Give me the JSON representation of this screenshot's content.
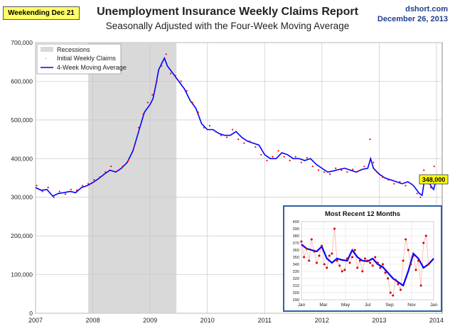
{
  "header": {
    "badge": "Weekending Dec 21",
    "title": "Unemployment Insurance Weekly Claims Report",
    "subtitle": "Seasonally Adjusted with the Four-Week Moving Average",
    "source": "dshort.com",
    "date": "December 26, 2013"
  },
  "colors": {
    "recession": "#d9d9d9",
    "points": "#ff0000",
    "average": "#0000ff",
    "callout": "#ffff00",
    "inset_border": "#2e5fa8"
  },
  "chart_data": [
    {
      "type": "line",
      "title": "Unemployment Insurance Weekly Claims Report",
      "subtitle": "Seasonally Adjusted with the Four-Week Moving Average",
      "xlabel": "",
      "ylabel": "",
      "xlim": [
        2007.0,
        2014.1
      ],
      "ylim": [
        0,
        700000
      ],
      "y_ticks": [
        "0",
        "100,000",
        "200,000",
        "300,000",
        "400,000",
        "500,000",
        "600,000",
        "700,000"
      ],
      "x_ticks": [
        "2007",
        "2008",
        "2009",
        "2010",
        "2011",
        "2012",
        "2013",
        "2014"
      ],
      "grid": true,
      "legend_position": "top-left",
      "legend": [
        "Recessions",
        "Initial Weekly Claims",
        "4-Week Moving Average"
      ],
      "recession": {
        "name": "Recessions",
        "start": 2007.92,
        "end": 2009.46
      },
      "callout": "348,000",
      "series": [
        {
          "name": "4-Week Moving Average",
          "style": "line",
          "x": [
            2007.0,
            2007.1,
            2007.2,
            2007.3,
            2007.4,
            2007.5,
            2007.6,
            2007.7,
            2007.8,
            2007.9,
            2008.0,
            2008.1,
            2008.2,
            2008.3,
            2008.4,
            2008.5,
            2008.6,
            2008.7,
            2008.8,
            2008.9,
            2009.0,
            2009.05,
            2009.1,
            2009.15,
            2009.2,
            2009.25,
            2009.3,
            2009.4,
            2009.5,
            2009.6,
            2009.7,
            2009.8,
            2009.9,
            2010.0,
            2010.1,
            2010.2,
            2010.3,
            2010.4,
            2010.5,
            2010.6,
            2010.7,
            2010.8,
            2010.9,
            2011.0,
            2011.1,
            2011.2,
            2011.3,
            2011.4,
            2011.5,
            2011.6,
            2011.7,
            2011.8,
            2011.9,
            2012.0,
            2012.1,
            2012.2,
            2012.3,
            2012.4,
            2012.5,
            2012.6,
            2012.7,
            2012.8,
            2012.85,
            2012.9,
            2013.0,
            2013.1,
            2013.2,
            2013.3,
            2013.4,
            2013.5,
            2013.6,
            2013.7,
            2013.75,
            2013.8,
            2013.85,
            2013.9,
            2013.95,
            2014.0
          ],
          "y": [
            325000,
            318000,
            320000,
            303000,
            310000,
            312000,
            315000,
            312000,
            325000,
            330000,
            338000,
            348000,
            360000,
            370000,
            365000,
            375000,
            390000,
            420000,
            470000,
            520000,
            540000,
            555000,
            590000,
            630000,
            645000,
            660000,
            640000,
            620000,
            600000,
            580000,
            550000,
            530000,
            490000,
            475000,
            475000,
            465000,
            460000,
            460000,
            470000,
            455000,
            445000,
            440000,
            435000,
            410000,
            400000,
            400000,
            415000,
            410000,
            400000,
            400000,
            395000,
            400000,
            385000,
            375000,
            365000,
            368000,
            372000,
            375000,
            370000,
            365000,
            372000,
            375000,
            400000,
            375000,
            360000,
            350000,
            345000,
            340000,
            335000,
            340000,
            330000,
            310000,
            305000,
            355000,
            345000,
            330000,
            320000,
            348000
          ]
        },
        {
          "name": "Initial Weekly Claims",
          "style": "markers",
          "x": [
            2007.02,
            2007.12,
            2007.22,
            2007.32,
            2007.42,
            2007.52,
            2007.62,
            2007.72,
            2007.82,
            2007.92,
            2008.02,
            2008.12,
            2008.22,
            2008.32,
            2008.42,
            2008.52,
            2008.62,
            2008.72,
            2008.8,
            2008.88,
            2008.96,
            2009.04,
            2009.12,
            2009.2,
            2009.28,
            2009.36,
            2009.44,
            2009.54,
            2009.64,
            2009.74,
            2009.84,
            2009.94,
            2010.04,
            2010.14,
            2010.24,
            2010.34,
            2010.44,
            2010.54,
            2010.64,
            2010.74,
            2010.84,
            2010.94,
            2011.04,
            2011.14,
            2011.24,
            2011.34,
            2011.44,
            2011.54,
            2011.64,
            2011.74,
            2011.84,
            2011.94,
            2012.04,
            2012.14,
            2012.24,
            2012.34,
            2012.44,
            2012.54,
            2012.64,
            2012.74,
            2012.84,
            2012.9,
            2012.96,
            2013.06,
            2013.16,
            2013.26,
            2013.36,
            2013.46,
            2013.56,
            2013.66,
            2013.72,
            2013.78,
            2013.84,
            2013.9,
            2013.96
          ],
          "y": [
            330000,
            315000,
            325000,
            300000,
            315000,
            308000,
            320000,
            318000,
            330000,
            335000,
            345000,
            352000,
            365000,
            380000,
            368000,
            380000,
            395000,
            430000,
            480000,
            515000,
            545000,
            565000,
            600000,
            640000,
            670000,
            620000,
            615000,
            600000,
            575000,
            545000,
            520000,
            480000,
            485000,
            470000,
            460000,
            455000,
            475000,
            450000,
            440000,
            445000,
            430000,
            410000,
            395000,
            405000,
            420000,
            405000,
            395000,
            405000,
            390000,
            402000,
            380000,
            370000,
            365000,
            360000,
            375000,
            370000,
            365000,
            372000,
            368000,
            380000,
            450000,
            390000,
            365000,
            352000,
            345000,
            335000,
            340000,
            330000,
            335000,
            310000,
            300000,
            370000,
            340000,
            325000,
            380000
          ]
        }
      ]
    },
    {
      "type": "line",
      "title": "Most Recent 12 Months",
      "ylim": [
        290,
        400
      ],
      "y_ticks": [
        "290",
        "300",
        "310",
        "320",
        "330",
        "340",
        "350",
        "360",
        "370",
        "380",
        "390",
        "400"
      ],
      "x_ticks": [
        "Jan",
        "Mar",
        "May",
        "Jul",
        "Sep",
        "Nov",
        "Jan"
      ],
      "xlim": [
        0,
        52
      ],
      "series": [
        {
          "name": "4-Week Moving Average",
          "style": "line",
          "x": [
            0,
            2,
            4,
            6,
            8,
            10,
            12,
            14,
            16,
            18,
            20,
            22,
            24,
            26,
            28,
            30,
            32,
            34,
            36,
            38,
            40,
            42,
            44,
            46,
            48,
            50,
            52
          ],
          "y": [
            368,
            362,
            360,
            358,
            365,
            348,
            342,
            348,
            346,
            345,
            360,
            350,
            345,
            344,
            348,
            340,
            336,
            328,
            320,
            315,
            310,
            330,
            355,
            348,
            335,
            340,
            348
          ]
        },
        {
          "name": "Initial Weekly Claims",
          "style": "markers",
          "x": [
            0,
            1,
            2,
            3,
            4,
            5,
            6,
            7,
            8,
            9,
            10,
            11,
            12,
            13,
            14,
            15,
            16,
            17,
            18,
            19,
            20,
            21,
            22,
            23,
            24,
            25,
            26,
            27,
            28,
            29,
            30,
            31,
            32,
            33,
            34,
            35,
            36,
            37,
            38,
            39,
            40,
            41,
            42,
            43,
            44,
            45,
            46,
            47,
            48,
            49,
            50
          ],
          "y": [
            372,
            350,
            362,
            345,
            375,
            358,
            342,
            352,
            366,
            340,
            335,
            352,
            355,
            390,
            345,
            338,
            330,
            332,
            348,
            342,
            350,
            360,
            335,
            345,
            330,
            348,
            345,
            342,
            338,
            350,
            342,
            335,
            340,
            328,
            320,
            300,
            296,
            318,
            312,
            304,
            345,
            375,
            360,
            340,
            352,
            332,
            345,
            310,
            370,
            380,
            340
          ]
        }
      ]
    }
  ]
}
